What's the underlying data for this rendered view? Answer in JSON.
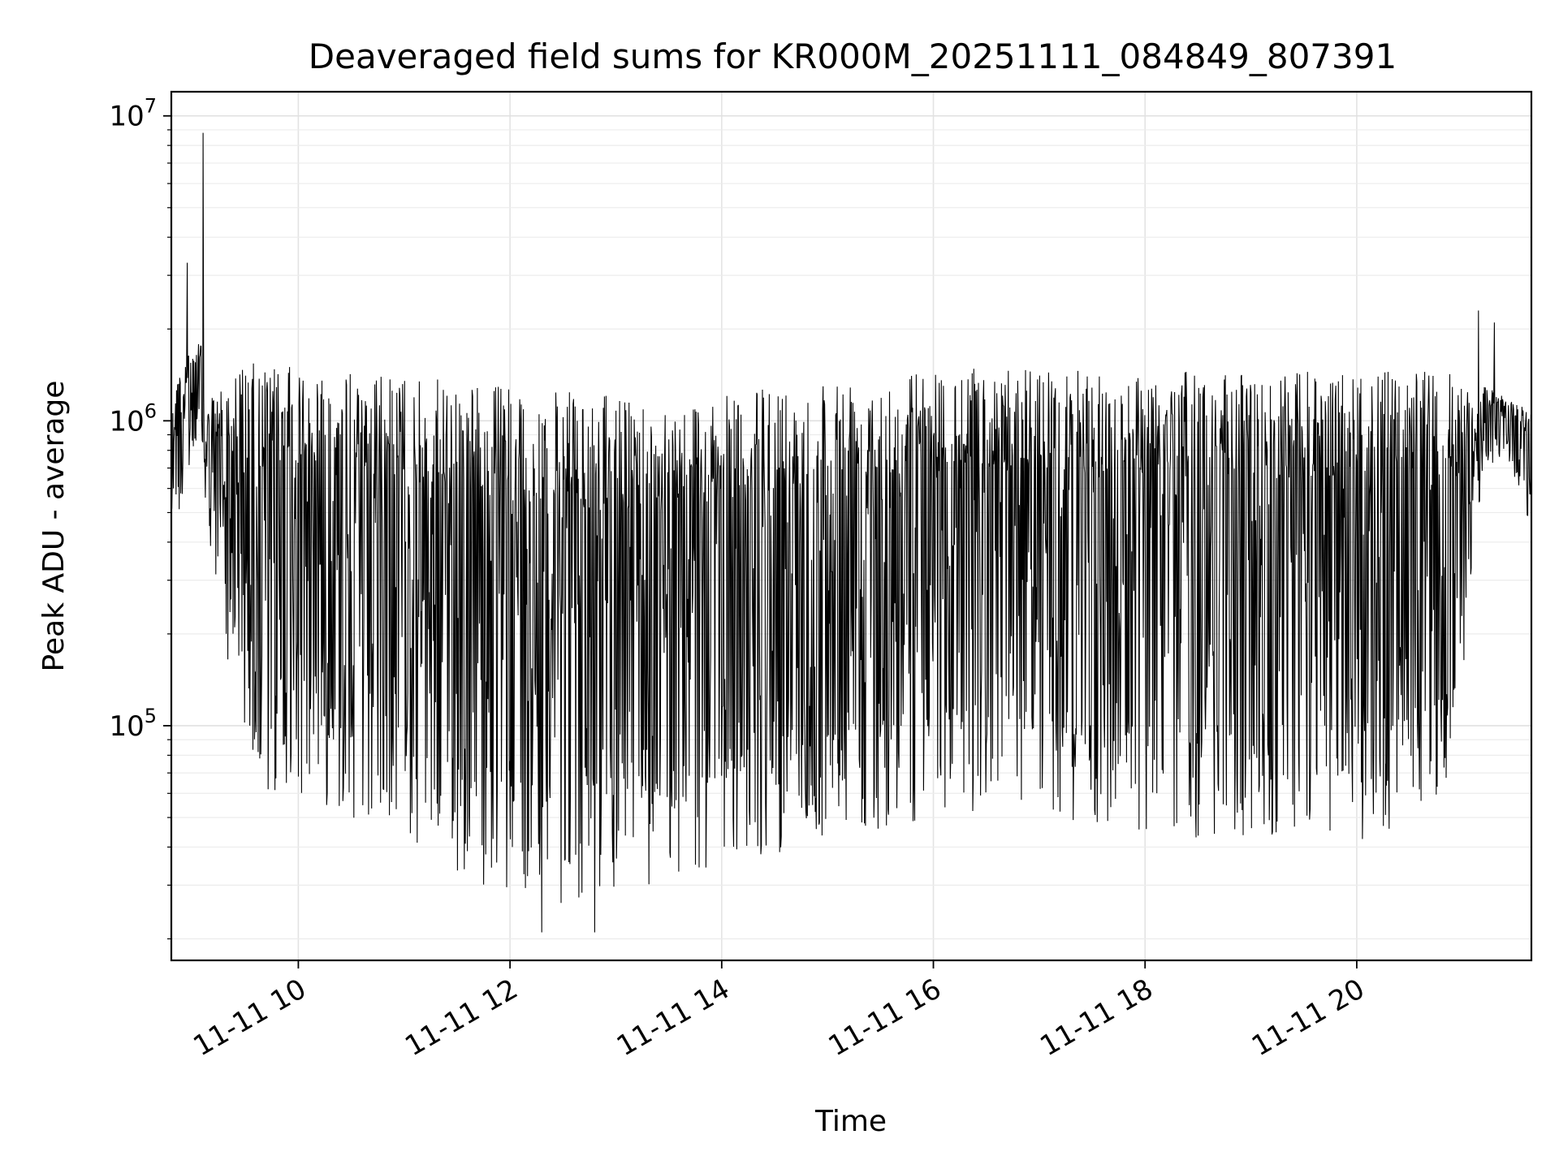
{
  "chart_data": {
    "type": "line",
    "title": "Deaveraged field sums for KR000M_20251111_084849_807391",
    "xlabel": "Time",
    "ylabel": "Peak ADU - average",
    "yscale": "log",
    "ylim": [
      17000,
      12000000
    ],
    "xlim": [
      8.8,
      21.65
    ],
    "grid": true,
    "x_ticks": [
      {
        "value": 10,
        "label": "11-11 10"
      },
      {
        "value": 12,
        "label": "11-11 12"
      },
      {
        "value": 14,
        "label": "11-11 14"
      },
      {
        "value": 16,
        "label": "11-11 16"
      },
      {
        "value": 18,
        "label": "11-11 18"
      },
      {
        "value": 20,
        "label": "11-11 20"
      }
    ],
    "y_ticks": [
      {
        "value": 100000,
        "base": "10",
        "exp": "5"
      },
      {
        "value": 1000000,
        "base": "10",
        "exp": "6"
      },
      {
        "value": 10000000,
        "base": "10",
        "exp": "7"
      }
    ],
    "series": [
      {
        "name": "Peak ADU - average",
        "color": "#000000",
        "envelope": {
          "x": [
            8.8,
            8.95,
            9.08,
            9.12,
            9.35,
            9.55,
            10,
            10.5,
            11,
            11.5,
            12,
            12.5,
            13,
            13.5,
            14,
            14.5,
            15,
            15.5,
            16,
            16.5,
            17,
            17.5,
            18,
            18.5,
            19,
            19.5,
            20,
            20.5,
            20.9,
            21.1,
            21.2,
            21.4,
            21.65
          ],
          "upper": [
            1300000,
            1700000,
            1900000,
            1100000,
            1450000,
            1550000,
            1500000,
            1450000,
            1400000,
            1350000,
            1300000,
            1250000,
            1200000,
            1150000,
            1200000,
            1300000,
            1400000,
            1450000,
            1500000,
            1500000,
            1500000,
            1450000,
            1450000,
            1450000,
            1450000,
            1450000,
            1450000,
            1450000,
            1450000,
            1200000,
            1300000,
            1200000,
            1100000
          ],
          "lower": [
            400000,
            600000,
            900000,
            450000,
            150000,
            55000,
            60000,
            50000,
            40000,
            32000,
            28000,
            26000,
            27000,
            30000,
            33000,
            38000,
            42000,
            46000,
            50000,
            50000,
            48000,
            46000,
            44000,
            42000,
            42000,
            42000,
            42000,
            45000,
            60000,
            350000,
            700000,
            750000,
            450000
          ]
        },
        "spikes": [
          {
            "x": 9.1,
            "y": 8800000
          },
          {
            "x": 8.95,
            "y": 3300000
          },
          {
            "x": 21.15,
            "y": 2300000
          },
          {
            "x": 21.3,
            "y": 2100000
          },
          {
            "x": 12.3,
            "y": 21000
          },
          {
            "x": 12.8,
            "y": 21000
          }
        ]
      }
    ]
  }
}
